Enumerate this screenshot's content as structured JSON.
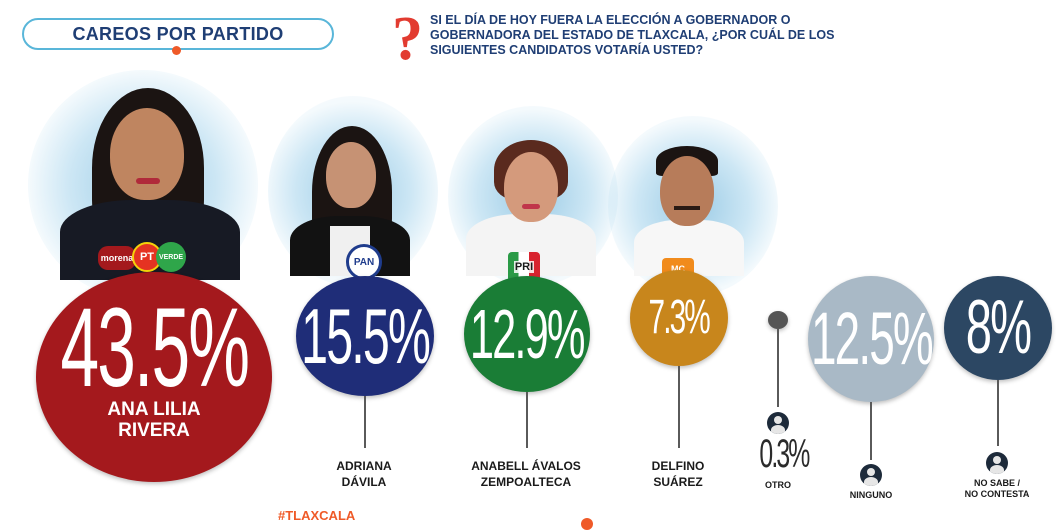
{
  "header": {
    "section_title": "CAREOS POR PARTIDO",
    "question_mark": "?",
    "question": "SI EL DÍA DE HOY FUERA LA ELECCIÓN A GOBERNADOR O GOBERNADORA DEL ESTADO DE TLAXCALA, ¿POR CUÁL DE LOS SIGUIENTES CANDIDATOS VOTARÍA USTED?"
  },
  "footer": {
    "hashtag": "#TLAXCALA"
  },
  "party_logos": {
    "morena": "morena",
    "pt": "PT",
    "verde": "VERDE",
    "pan": "PAN",
    "pri": "PRI",
    "mc": "MC"
  },
  "chart_data": {
    "type": "bubble",
    "unit": "%",
    "items": [
      {
        "label": "ANA LILIA RIVERA",
        "value": 43.5,
        "display": "43.5%",
        "color": "#a4191d",
        "parties": [
          "morena",
          "PT",
          "VERDE"
        ]
      },
      {
        "label": "ADRIANA DÁVILA",
        "value": 15.5,
        "display": "15.5%",
        "color": "#1f2d78",
        "parties": [
          "PAN"
        ]
      },
      {
        "label": "ANABELL ÁVALOS ZEMPOALTECA",
        "value": 12.9,
        "display": "12.9%",
        "color": "#1a7d36",
        "parties": [
          "PRI"
        ]
      },
      {
        "label": "DELFINO SUÁREZ",
        "value": 7.3,
        "display": "7.3%",
        "color": "#c8861c",
        "parties": [
          "MC"
        ]
      },
      {
        "label": "OTRO",
        "value": 0.3,
        "display": "0.3%",
        "color": "#555555"
      },
      {
        "label": "NINGUNO",
        "value": 12.5,
        "display": "12.5%",
        "color": "#a9b9c6"
      },
      {
        "label": "NO SABE / NO CONTESTA",
        "value": 8,
        "display": "8%",
        "color": "#2c4763"
      }
    ]
  },
  "labels": {
    "c1_line1": "ANA LILIA",
    "c1_line2": "RIVERA",
    "c2_line1": "ADRIANA",
    "c2_line2": "DÁVILA",
    "c3_line1": "ANABELL ÁVALOS",
    "c3_line2": "ZEMPOALTECA",
    "c4_line1": "DELFINO",
    "c4_line2": "SUÁREZ",
    "otro": "OTRO",
    "ninguno": "NINGUNO",
    "nosabe_line1": "NO SABE /",
    "nosabe_line2": "NO CONTESTA"
  }
}
